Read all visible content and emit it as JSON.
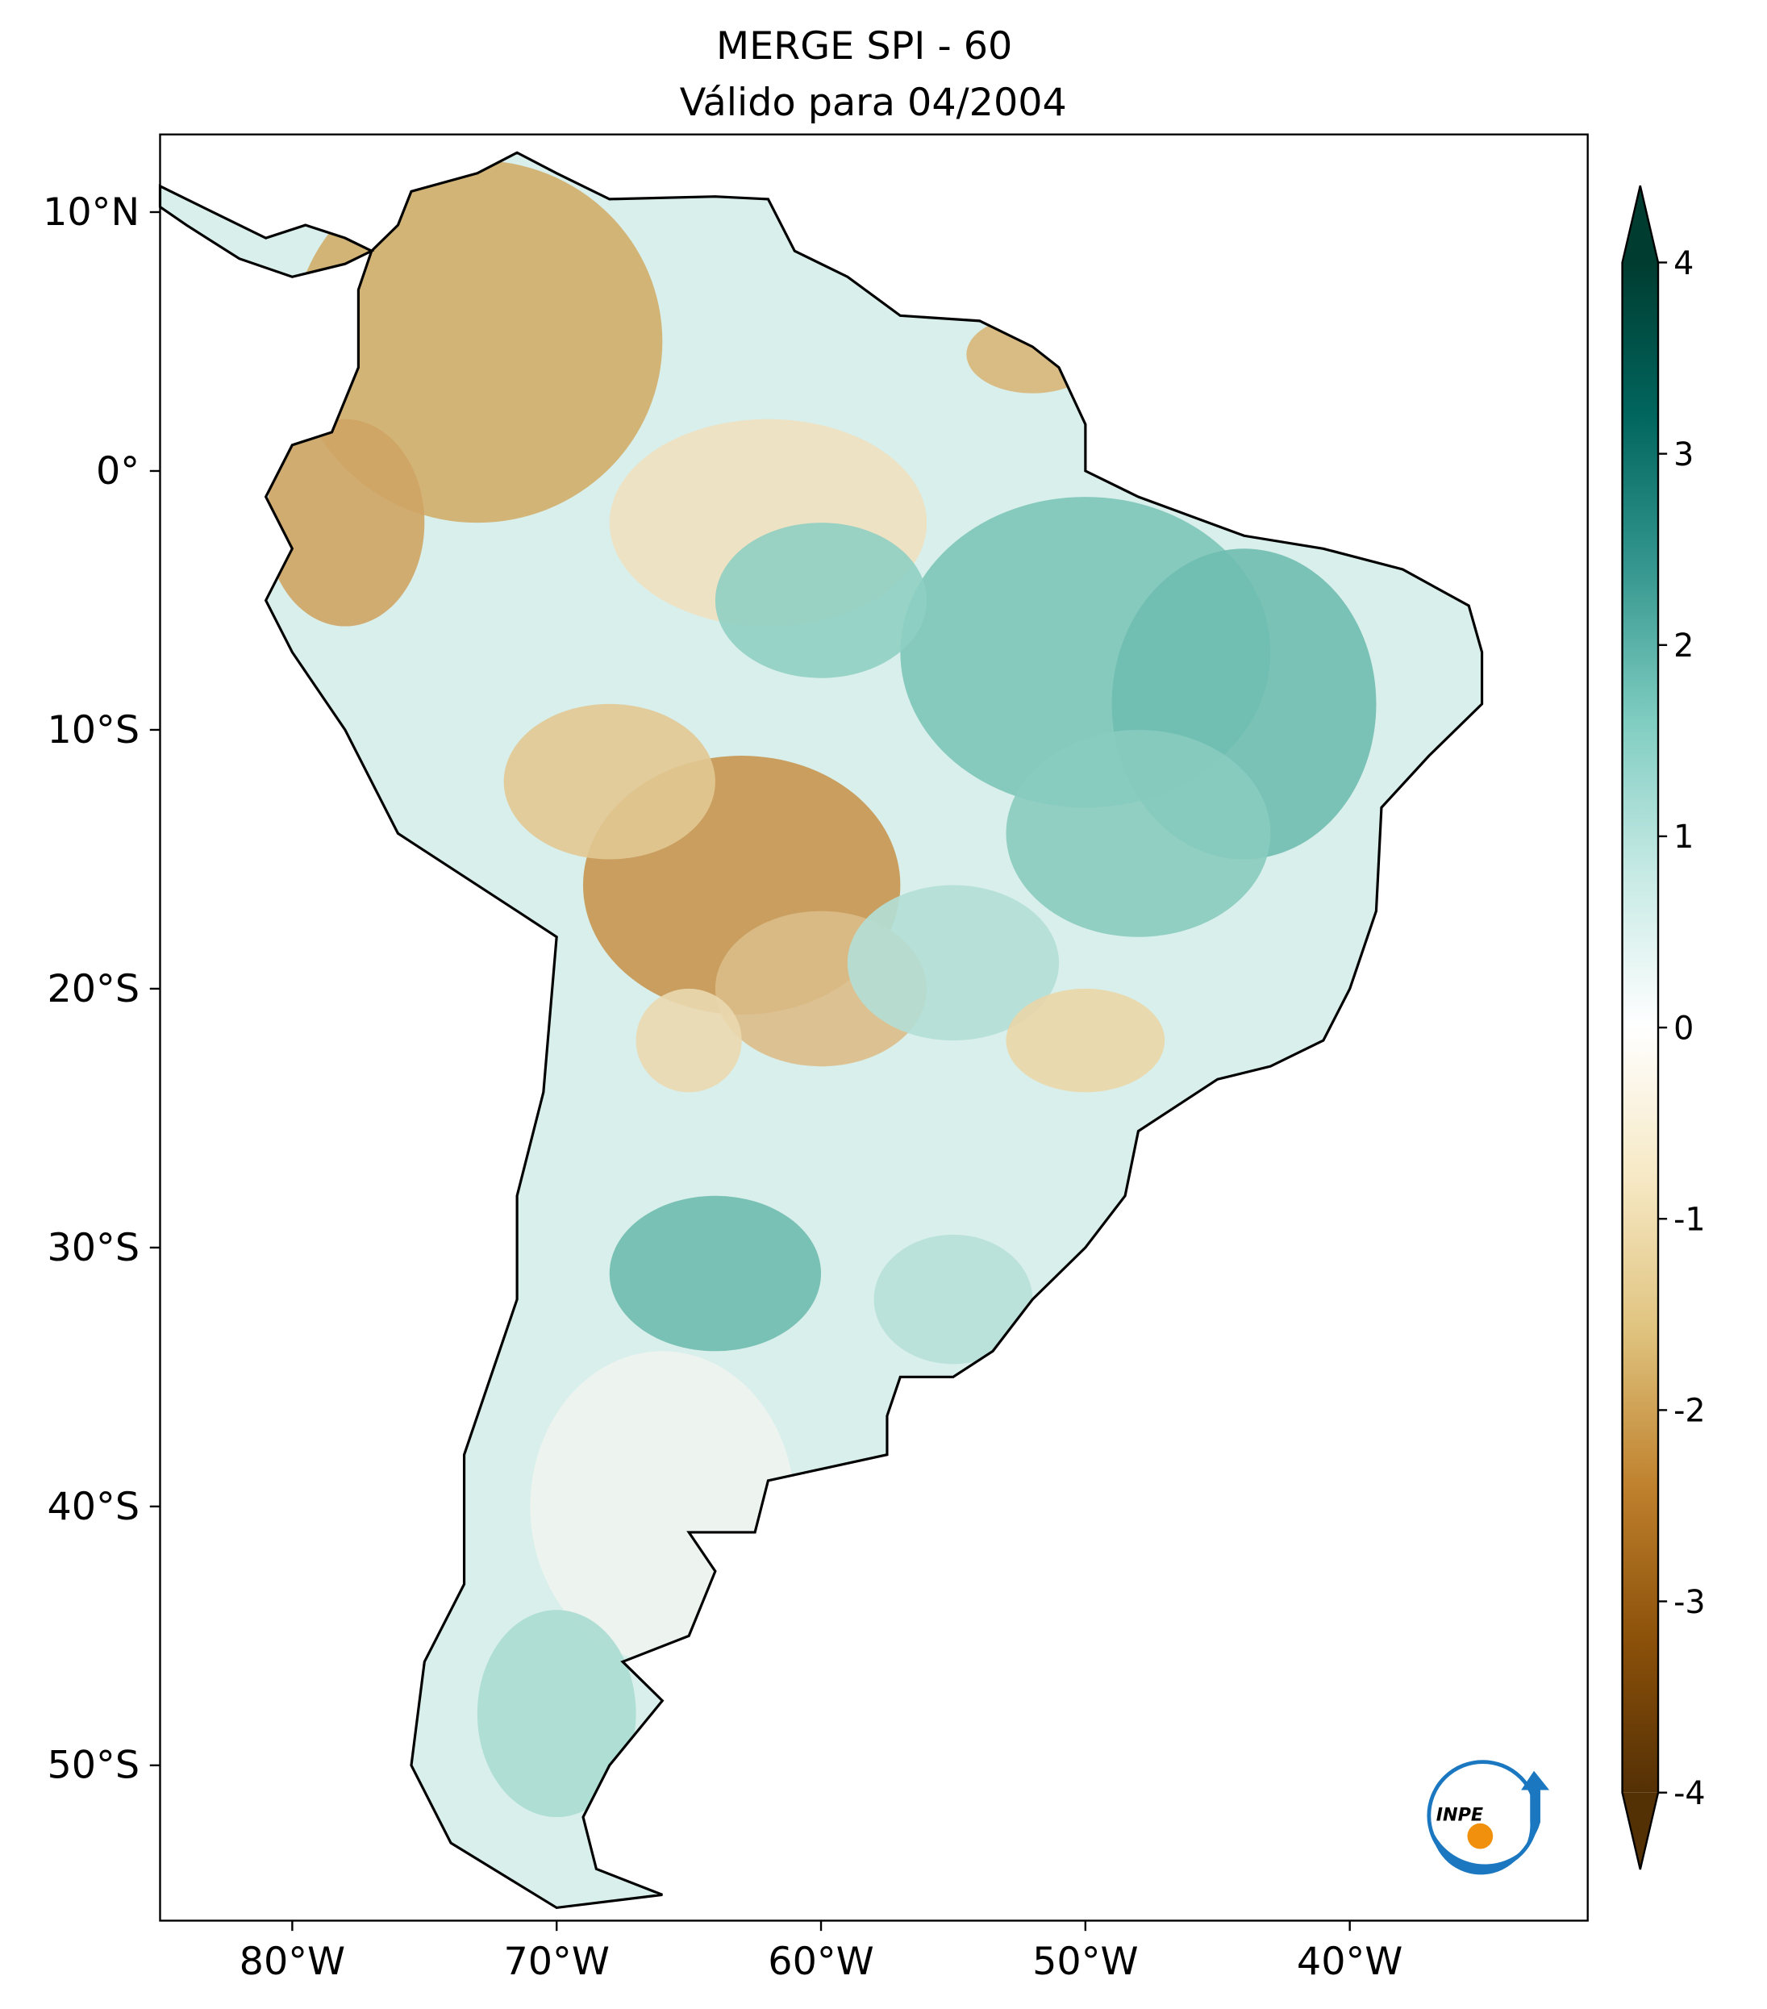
{
  "title": [
    "MERGE   SPI - 60",
    "Válido para 04/2004"
  ],
  "map": {
    "xlim": [
      -85,
      -31
    ],
    "ylim": [
      -56,
      13
    ],
    "xticks": [
      {
        "value": -80,
        "label": "80°W"
      },
      {
        "value": -70,
        "label": "70°W"
      },
      {
        "value": -60,
        "label": "60°W"
      },
      {
        "value": -50,
        "label": "50°W"
      },
      {
        "value": -40,
        "label": "40°W"
      }
    ],
    "yticks": [
      {
        "value": 10,
        "label": "10°N"
      },
      {
        "value": 0,
        "label": "0°"
      },
      {
        "value": -10,
        "label": "10°S"
      },
      {
        "value": -20,
        "label": "20°S"
      },
      {
        "value": -30,
        "label": "30°S"
      },
      {
        "value": -40,
        "label": "40°S"
      },
      {
        "value": -50,
        "label": "50°S"
      }
    ]
  },
  "colorbar": {
    "lim": [
      -4,
      4
    ],
    "ticks": [
      4,
      3,
      2,
      1,
      0,
      -1,
      -2,
      -3,
      -4
    ],
    "colors": [
      "#543005",
      "#8c510a",
      "#bf812d",
      "#dfc27d",
      "#f6e8c3",
      "#ffffff",
      "#c7eae5",
      "#80cdc1",
      "#35978f",
      "#01665e",
      "#003c30"
    ]
  },
  "logo": {
    "text": "INPE"
  }
}
